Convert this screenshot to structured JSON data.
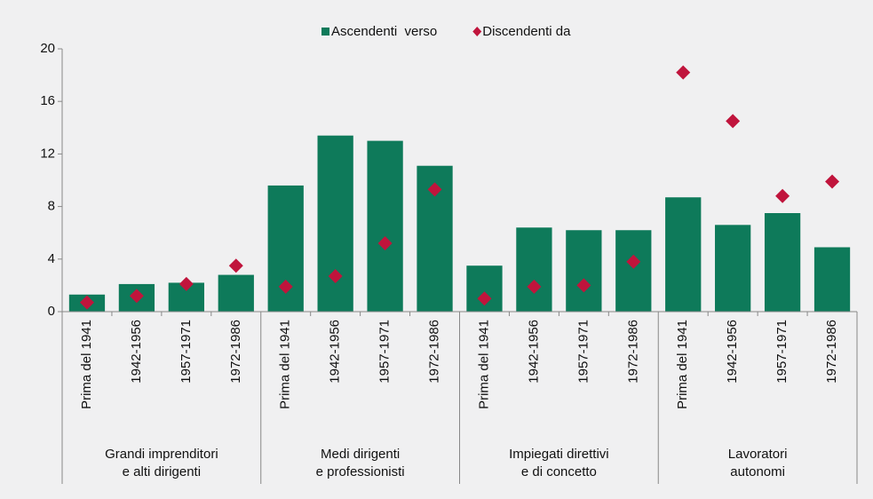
{
  "chart_data": {
    "type": "bar",
    "groups": [
      {
        "label": [
          "Grandi imprenditori",
          "e alti dirigenti"
        ],
        "categories": [
          "Prima del 1941",
          "1942-1956",
          "1957-1971",
          "1972-1986"
        ]
      },
      {
        "label": [
          "Medi dirigenti",
          "e professionisti"
        ],
        "categories": [
          "Prima del 1941",
          "1942-1956",
          "1957-1971",
          "1972-1986"
        ]
      },
      {
        "label": [
          "Impiegati direttivi",
          "e di concetto"
        ],
        "categories": [
          "Prima del 1941",
          "1942-1956",
          "1957-1971",
          "1972-1986"
        ]
      },
      {
        "label": [
          "Lavoratori",
          "autonomi"
        ],
        "categories": [
          "Prima del 1941",
          "1942-1956",
          "1957-1971",
          "1972-1986"
        ]
      }
    ],
    "series": [
      {
        "name": "Ascendenti  verso",
        "type": "bar",
        "color": "#0e7a5a",
        "values": [
          1.3,
          2.1,
          2.2,
          2.8,
          9.6,
          13.4,
          13.0,
          11.1,
          3.5,
          6.4,
          6.2,
          6.2,
          8.7,
          6.6,
          7.5,
          4.9
        ]
      },
      {
        "name": "Discendenti da",
        "type": "scatter",
        "color": "#c0143c",
        "values": [
          0.7,
          1.2,
          2.1,
          3.5,
          1.9,
          2.7,
          5.2,
          9.3,
          1.0,
          1.9,
          2.0,
          3.8,
          18.2,
          14.5,
          8.8,
          9.9
        ]
      }
    ],
    "ylim": [
      0,
      20
    ],
    "yticks": [
      0,
      4,
      8,
      12,
      16,
      20
    ],
    "legend": "top"
  }
}
